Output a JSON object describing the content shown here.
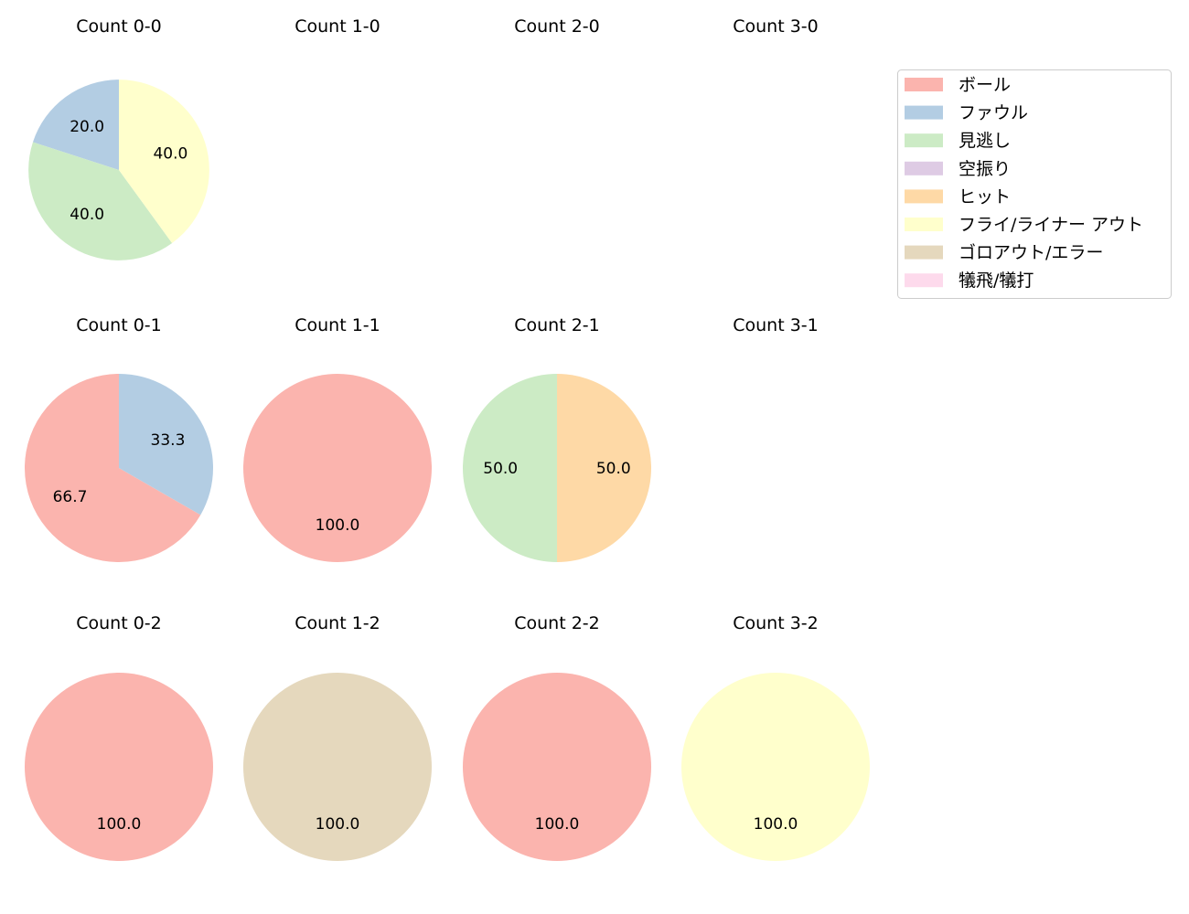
{
  "chart_data": {
    "type": "pie",
    "legend": {
      "placement": "top-right",
      "entries": [
        {
          "name": "ボール",
          "color": "#fbb4ae"
        },
        {
          "name": "ファウル",
          "color": "#b3cde3"
        },
        {
          "name": "見逃し",
          "color": "#ccebc5"
        },
        {
          "name": "空振り",
          "color": "#decbe4"
        },
        {
          "name": "ヒット",
          "color": "#fed9a6"
        },
        {
          "name": "フライ/ライナー アウト",
          "color": "#ffffcc"
        },
        {
          "name": "ゴロアウト/エラー",
          "color": "#e5d8bd"
        },
        {
          "name": "犠飛/犠打",
          "color": "#fddaec"
        }
      ]
    },
    "pies": [
      {
        "title": "Count 0-0",
        "slices": [
          {
            "category": "ファウル",
            "value": 20.0,
            "label": "20.0"
          },
          {
            "category": "見逃し",
            "value": 40.0,
            "label": "40.0"
          },
          {
            "category": "フライ/ライナー アウト",
            "value": 40.0,
            "label": "40.0"
          }
        ]
      },
      {
        "title": "Count 1-0",
        "slices": []
      },
      {
        "title": "Count 2-0",
        "slices": []
      },
      {
        "title": "Count 3-0",
        "slices": []
      },
      {
        "title": "Count 0-1",
        "slices": [
          {
            "category": "ボール",
            "value": 66.7,
            "label": "66.7"
          },
          {
            "category": "ファウル",
            "value": 33.3,
            "label": "33.3"
          }
        ]
      },
      {
        "title": "Count 1-1",
        "slices": [
          {
            "category": "ボール",
            "value": 100.0,
            "label": "100.0"
          }
        ]
      },
      {
        "title": "Count 2-1",
        "slices": [
          {
            "category": "見逃し",
            "value": 50.0,
            "label": "50.0"
          },
          {
            "category": "ヒット",
            "value": 50.0,
            "label": "50.0"
          }
        ]
      },
      {
        "title": "Count 3-1",
        "slices": []
      },
      {
        "title": "Count 0-2",
        "slices": [
          {
            "category": "ボール",
            "value": 100.0,
            "label": "100.0"
          }
        ]
      },
      {
        "title": "Count 1-2",
        "slices": [
          {
            "category": "ゴロアウト/エラー",
            "value": 100.0,
            "label": "100.0"
          }
        ]
      },
      {
        "title": "Count 2-2",
        "slices": [
          {
            "category": "ボール",
            "value": 100.0,
            "label": "100.0"
          }
        ]
      },
      {
        "title": "Count 3-2",
        "slices": [
          {
            "category": "フライ/ライナー アウト",
            "value": 100.0,
            "label": "100.0"
          }
        ]
      }
    ]
  }
}
